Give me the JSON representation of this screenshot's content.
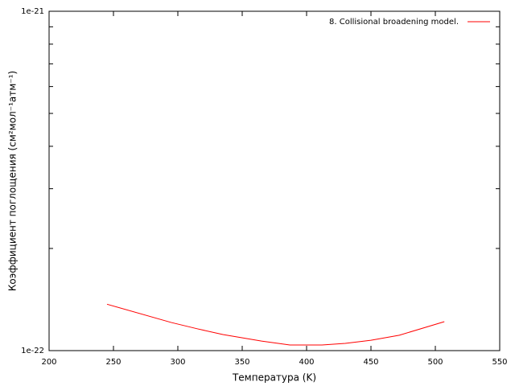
{
  "chart_data": {
    "type": "line",
    "xlabel": "Температура (K)",
    "ylabel": "Коэффициент поглощения (см²мол⁻¹атм⁻¹)",
    "x": [
      245,
      295,
      315,
      335,
      365,
      387,
      412,
      430,
      450,
      472,
      507
    ],
    "series": [
      {
        "name": "8. Collisional broadening model.",
        "color": "#ff0000",
        "values": [
          1.37e-22,
          1.21e-22,
          1.16e-22,
          1.115e-22,
          1.067e-22,
          1.039e-22,
          1.039e-22,
          1.05e-22,
          1.073e-22,
          1.11e-22,
          1.217e-22
        ]
      }
    ],
    "xlim": [
      200,
      550
    ],
    "xticks": [
      200,
      250,
      300,
      350,
      400,
      450,
      500,
      550
    ],
    "ylim": [
      1e-22,
      1e-21
    ],
    "ylog": true,
    "yticks": [
      {
        "value": 1e-22,
        "label": "1e-22"
      },
      {
        "value": 1e-21,
        "label": "1e-21"
      }
    ],
    "yminorticks": [
      2e-22,
      3e-22,
      4e-22,
      5e-22,
      6e-22,
      7e-22,
      8e-22,
      9e-22
    ],
    "legend": "top right"
  }
}
